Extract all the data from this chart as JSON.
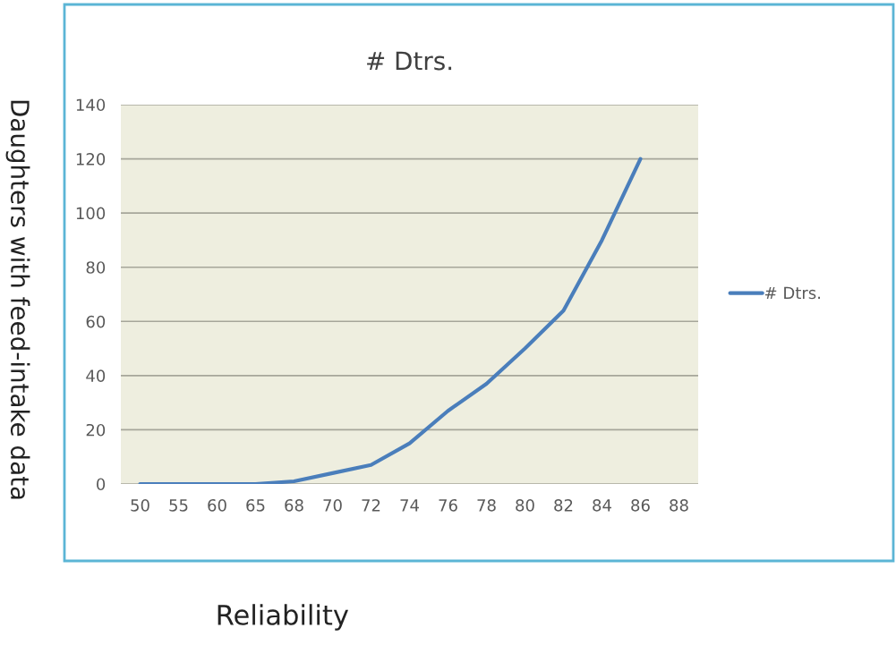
{
  "chart_data": {
    "type": "line",
    "title": "# Dtrs.",
    "xlabel": "Reliability",
    "ylabel": "Daughters with feed-intake data",
    "categories": [
      "50",
      "55",
      "60",
      "65",
      "68",
      "70",
      "72",
      "74",
      "76",
      "78",
      "80",
      "82",
      "84",
      "86",
      "88"
    ],
    "series": [
      {
        "name": "# Dtrs.",
        "color": "#4a7ebb",
        "values": [
          0,
          0,
          0,
          0,
          1,
          4,
          7,
          15,
          27,
          37,
          50,
          64,
          90,
          120,
          null
        ]
      }
    ],
    "ylim": [
      0,
      140
    ],
    "yticks": [
      0,
      20,
      40,
      60,
      80,
      100,
      120,
      140
    ],
    "grid": "y",
    "legend": "right",
    "marker": "none",
    "line_style": "solid"
  }
}
